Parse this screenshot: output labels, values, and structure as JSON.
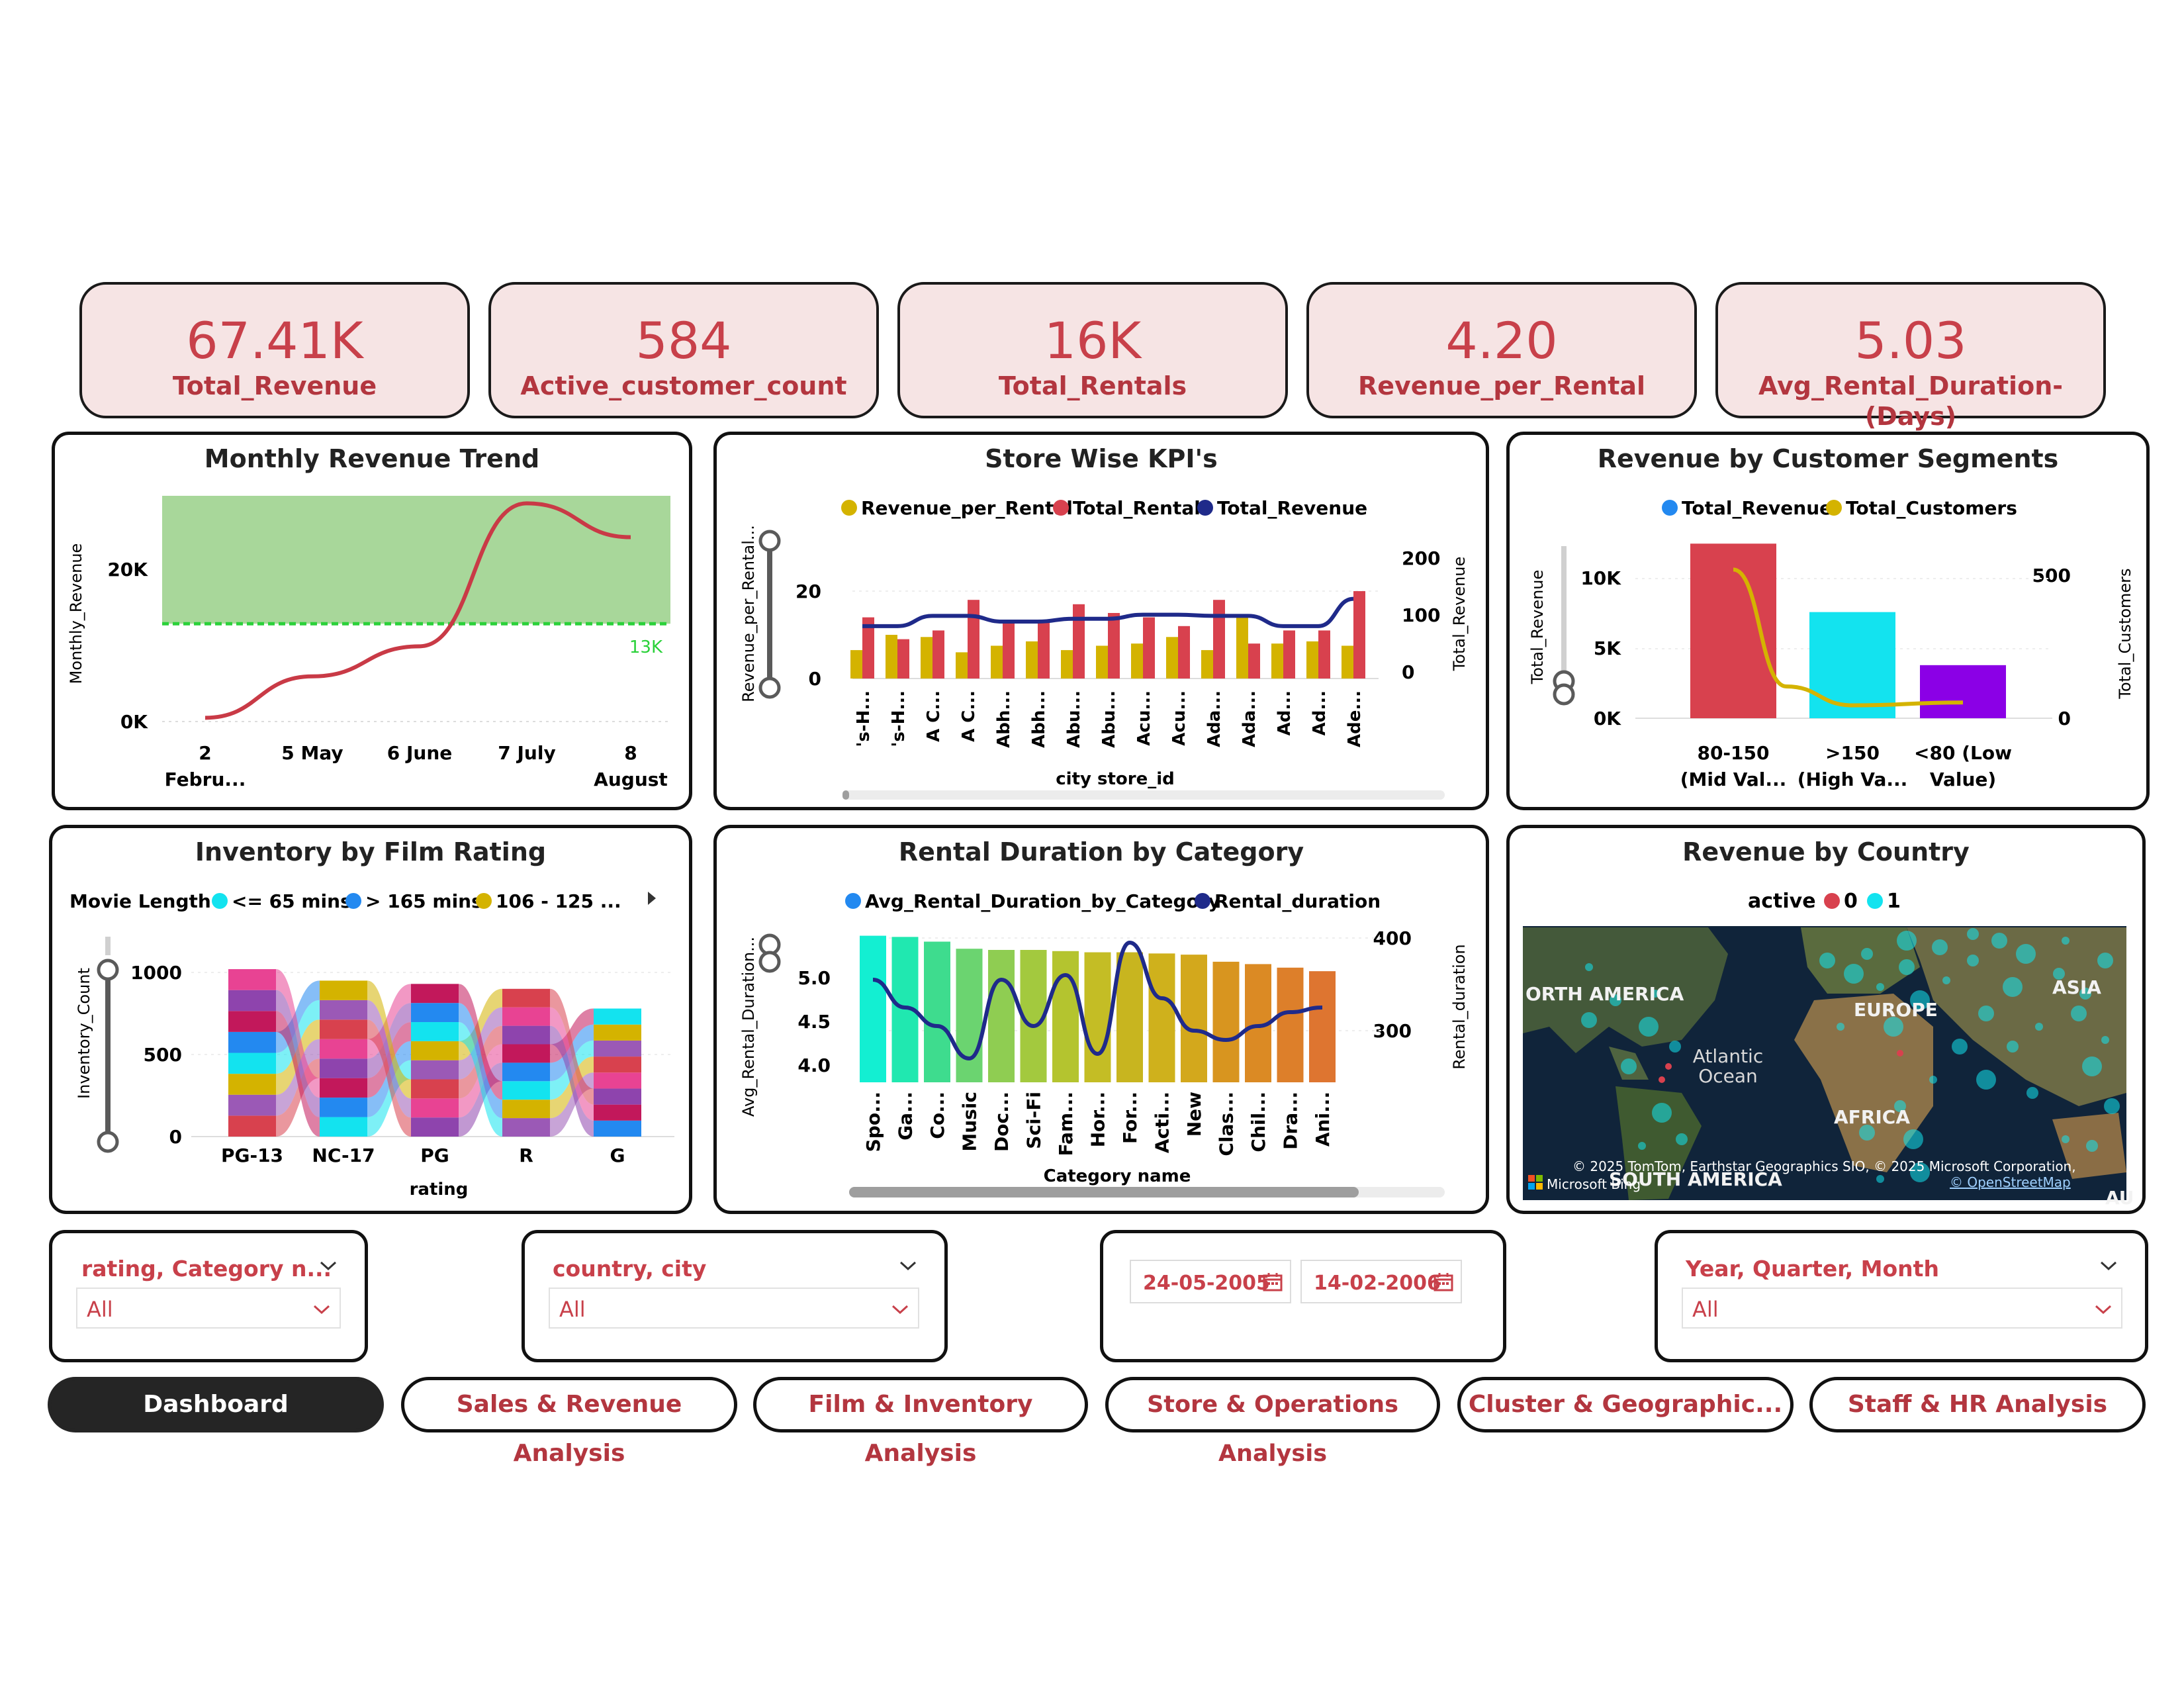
{
  "kpis": [
    {
      "value": "67.41K",
      "label": "Total_Revenue"
    },
    {
      "value": "584",
      "label": "Active_customer_count"
    },
    {
      "value": "16K",
      "label": "Total_Rentals"
    },
    {
      "value": "4.20",
      "label": "Revenue_per_Rental"
    },
    {
      "value": "5.03",
      "label": "Avg_Rental_Duration-(Days)"
    }
  ],
  "monthly_trend": {
    "title": "Monthly Revenue Trend",
    "ylabel": "Monthly_Revenue",
    "y_ticks": [
      "20K",
      "0K"
    ],
    "x_ticks": [
      [
        "2",
        "Febru..."
      ],
      [
        "5 May",
        ""
      ],
      [
        "6 June",
        ""
      ],
      [
        "7 July",
        ""
      ],
      [
        "8",
        "August"
      ]
    ],
    "target_label": "13K",
    "chart_data": {
      "type": "line",
      "categories": [
        "2 February",
        "5 May",
        "6 June",
        "7 July",
        "8 August"
      ],
      "values": [
        500,
        6000,
        10000,
        29000,
        24500
      ],
      "target": 13000,
      "ylim": [
        0,
        30000
      ],
      "line_color": "#c93a46",
      "band_color": "#a8d79a"
    }
  },
  "store_kpis": {
    "title": "Store Wise KPI's",
    "legend": [
      {
        "label": "Revenue_per_Rental",
        "color": "#d4b300"
      },
      {
        "label": "Total_Rentals",
        "color": "#d8414e"
      },
      {
        "label": "Total_Revenue",
        "color": "#1f2a8a"
      }
    ],
    "ylabel_left": "Revenue_per_Rental...",
    "ylabel_right": "Total_Revenue",
    "xlabel": "city store_id",
    "left_ticks": [
      "20",
      "0"
    ],
    "right_ticks": [
      "200",
      "100",
      "0"
    ],
    "chart_data": {
      "type": "bar",
      "categories": [
        "'s-H...",
        "'s-H...",
        "A C...",
        "A C...",
        "Abh...",
        "Abh...",
        "Abu...",
        "Abu...",
        "Acu...",
        "Acu...",
        "Ada...",
        "Ada...",
        "Ad...",
        "Ad...",
        "Ade..."
      ],
      "series": [
        {
          "name": "Revenue_per_Rental",
          "values": [
            6.5,
            10,
            9.5,
            6,
            7.5,
            8.5,
            6.5,
            7.5,
            8,
            9.5,
            6.5,
            14,
            8,
            8.5,
            7.5
          ]
        },
        {
          "name": "Total_Rentals",
          "values": [
            14,
            9,
            11,
            18,
            13,
            13,
            17,
            15,
            14,
            12,
            18,
            8,
            11,
            11,
            20
          ]
        },
        {
          "name": "Total_Revenue",
          "values": [
            92,
            92,
            110,
            110,
            100,
            100,
            105,
            105,
            112,
            112,
            110,
            110,
            92,
            92,
            140
          ]
        }
      ],
      "ylim_left": [
        0,
        25
      ],
      "ylim_right": [
        0,
        250
      ]
    }
  },
  "segments": {
    "title": "Revenue by Customer Segments",
    "legend": [
      {
        "label": "Total_Revenue",
        "color": "#2389f0"
      },
      {
        "label": "Total_Customers",
        "color": "#d4b300"
      }
    ],
    "ylabel_left": "Total_Revenue",
    "ylabel_right": "Total_Customers",
    "left_ticks": [
      "10K",
      "5K",
      "0K"
    ],
    "right_ticks": [
      "500",
      "0"
    ],
    "x_labels": [
      [
        "80-150",
        "(Mid Val..."
      ],
      [
        ">150",
        "(High Va..."
      ],
      [
        "<80 (Low",
        "Value)"
      ]
    ],
    "chart_data": {
      "type": "bar",
      "categories": [
        "80-150 (Mid Value)",
        ">150 (High Value)",
        "<80 (Low Value)"
      ],
      "series": [
        {
          "name": "Total_Revenue",
          "values": [
            12500,
            7600,
            3800
          ],
          "colors": [
            "#d8414e",
            "#13e3ef",
            "#8b00e6"
          ]
        },
        {
          "name": "Total_Customers",
          "values": [
            520,
            45,
            55
          ]
        }
      ],
      "ylim_left": [
        0,
        14000
      ],
      "ylim_right": [
        0,
        700
      ]
    }
  },
  "inventory": {
    "title": "Inventory by Film Rating",
    "legend_title": "Movie Length",
    "legend": [
      {
        "label": "<= 65 mins",
        "color": "#13e3ef"
      },
      {
        "label": "> 165 mins",
        "color": "#2389f0"
      },
      {
        "label": "106 - 125 ...",
        "color": "#d4b300"
      }
    ],
    "ylabel": "Inventory_Count",
    "xlabel": "rating",
    "y_ticks": [
      "1000",
      "500",
      "0"
    ],
    "chart_data": {
      "type": "bar",
      "categories": [
        "PG-13",
        "NC-17",
        "PG",
        "R",
        "G"
      ],
      "values": [
        1020,
        950,
        930,
        900,
        780
      ],
      "ylim": [
        0,
        1050
      ]
    }
  },
  "rental_duration": {
    "title": "Rental Duration by Category",
    "legend": [
      {
        "label": "Avg_Rental_Duration_by_Category",
        "color": "#2389f0"
      },
      {
        "label": "Rental_duration",
        "color": "#1f2a8a"
      }
    ],
    "ylabel_left": "Avg_Rental_Duration...",
    "ylabel_right": "Rental_duration",
    "xlabel": "Category name",
    "left_ticks": [
      "5.0",
      "4.5",
      "4.0"
    ],
    "right_ticks": [
      "400",
      "300"
    ],
    "chart_data": {
      "type": "bar",
      "categories": [
        "Spo...",
        "Ga...",
        "Co...",
        "Music",
        "Doc...",
        "Sci-Fi",
        "Fam...",
        "Hor...",
        "For...",
        "Acti...",
        "New",
        "Clas...",
        "Chil...",
        "Dra...",
        "Ani..."
      ],
      "series": [
        {
          "name": "Avg_Rental_Duration_by_Category",
          "values": [
            5.14,
            5.13,
            5.09,
            5.03,
            5.02,
            5.02,
            5.01,
            5.0,
            5.0,
            4.99,
            4.98,
            4.92,
            4.9,
            4.87,
            4.84
          ]
        },
        {
          "name": "Rental_duration",
          "values": [
            355,
            325,
            305,
            270,
            355,
            305,
            360,
            275,
            395,
            335,
            300,
            290,
            305,
            320,
            325
          ]
        }
      ],
      "ylim_left": [
        3.9,
        5.3
      ],
      "ylim_right": [
        260,
        410
      ]
    }
  },
  "country": {
    "title": "Revenue by Country",
    "legend_title": "active",
    "legend": [
      {
        "label": "0",
        "color": "#d8414e"
      },
      {
        "label": "1",
        "color": "#13e3ef"
      }
    ],
    "map_labels": [
      "ORTH AMERICA",
      "EUROPE",
      "ASIA",
      "Atlantic",
      "Ocean",
      "AFRICA",
      "SOUTH AMERICA",
      "AU"
    ],
    "copyright": "© 2025 TomTom, Earthstar Geographics SIO, © 2025 Microsoft Corporation,",
    "osm": "© OpenStreetMap",
    "brand": "Microsoft Bing"
  },
  "slicers": {
    "rating_category": {
      "title": "rating, Category n...",
      "value": "All"
    },
    "country_city": {
      "title": "country, city",
      "value": "All"
    },
    "date_from": "24-05-2005",
    "date_to": "14-02-2006",
    "year_quarter_month": {
      "title": "Year, Quarter, Month",
      "value": "All"
    }
  },
  "nav": [
    {
      "label": "Dashboard",
      "active": true
    },
    {
      "label": "Sales & Revenue Analysis",
      "active": false
    },
    {
      "label": "Film & Inventory Analysis",
      "active": false
    },
    {
      "label": "Store & Operations Analysis",
      "active": false
    },
    {
      "label": "Cluster & Geographic...",
      "active": false
    },
    {
      "label": "Staff & HR Analysis",
      "active": false
    }
  ]
}
